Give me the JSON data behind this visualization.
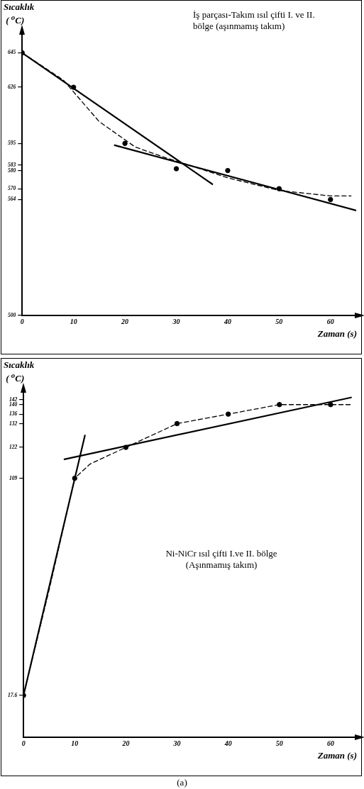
{
  "chart_data": [
    {
      "type": "scatter",
      "xlabel": "Zaman (s)",
      "ylabel": "Sıcaklık ( $^{o}$C)",
      "annotations": [
        "İş parçası-Takım ısıl çifti I. ve II. bölge (aşınmamış takım)"
      ],
      "xlim": [
        0,
        65
      ],
      "ylim": [
        500,
        655
      ],
      "xticks": [
        0,
        10,
        20,
        30,
        40,
        50,
        60
      ],
      "yticks": [
        500,
        564,
        570,
        580,
        583,
        595,
        626,
        645
      ],
      "grid": false,
      "series": [
        {
          "type": "scatter",
          "marker": "circle",
          "color": "#000000",
          "x": [
            0,
            10,
            20,
            30,
            40,
            50,
            60
          ],
          "values": [
            645,
            626,
            595,
            581,
            580,
            570,
            564
          ]
        },
        {
          "type": "line",
          "line_style": "solid",
          "color": "#000000",
          "x": [
            0,
            37
          ],
          "values": [
            645,
            572.5
          ]
        },
        {
          "type": "line",
          "line_style": "solid",
          "color": "#000000",
          "x": [
            18,
            65
          ],
          "values": [
            594,
            558
          ]
        },
        {
          "type": "line",
          "line_style": "dashed",
          "color": "#000000",
          "x": [
            0,
            8,
            15,
            22,
            28,
            32.5,
            40,
            50,
            60,
            64
          ],
          "values": [
            645,
            630,
            607,
            593,
            587,
            583,
            576,
            569,
            566,
            566
          ]
        }
      ]
    },
    {
      "type": "scatter",
      "xlabel": "Zaman (s)",
      "ylabel": "Sıcaklık ( $^{o}$C)",
      "annotations": [
        "Ni-NiCr ısıl çifti I.ve II. bölge (Aşınmamış takım)",
        "(a)"
      ],
      "xlim": [
        0,
        65
      ],
      "ylim": [
        0,
        145
      ],
      "xticks": [
        0,
        10,
        20,
        30,
        40,
        50,
        60
      ],
      "yticks": [
        17.6,
        109,
        122,
        132,
        136,
        140,
        142
      ],
      "grid": false,
      "series": [
        {
          "type": "scatter",
          "marker": "circle",
          "color": "#000000",
          "x": [
            0,
            10,
            20,
            30,
            40,
            50,
            60
          ],
          "values": [
            17.6,
            109,
            122,
            132,
            136,
            140,
            140
          ]
        },
        {
          "type": "line",
          "line_style": "solid",
          "color": "#000000",
          "x": [
            0,
            12
          ],
          "values": [
            17.6,
            127
          ]
        },
        {
          "type": "line",
          "line_style": "solid",
          "color": "#000000",
          "x": [
            8,
            64
          ],
          "values": [
            117,
            143
          ]
        },
        {
          "type": "line",
          "line_style": "dashed",
          "color": "#000000",
          "x": [
            0,
            5,
            10,
            13,
            20,
            30,
            40,
            50,
            60,
            64
          ],
          "values": [
            17.6,
            62,
            109,
            115,
            122,
            132,
            136,
            140,
            140,
            140
          ]
        }
      ]
    }
  ]
}
